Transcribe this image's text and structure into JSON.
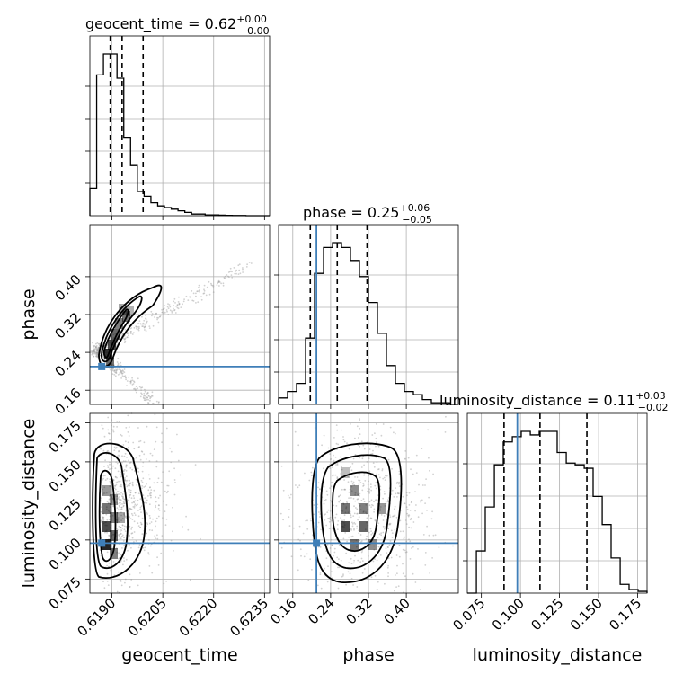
{
  "chart_data": {
    "type": "corner",
    "parameters": [
      "geocent_time",
      "phase",
      "luminosity_distance"
    ],
    "truths": {
      "geocent_time": 0.6187,
      "phase": 0.21,
      "luminosity_distance": 0.098
    },
    "colors": {
      "truth": "#3f7fb8",
      "line": "#000000",
      "grid": "#b0b0b0",
      "scatter": "#9a9a9a"
    },
    "grid": true,
    "titles": {
      "geocent_time": {
        "label": "geocent_time = 0.62",
        "plus": "+0.00",
        "minus": "−0.00"
      },
      "phase": {
        "label": "phase = 0.25",
        "plus": "+0.06",
        "minus": "−0.05"
      },
      "luminosity_distance": {
        "label": "luminosity_distance = 0.11",
        "plus": "+0.03",
        "minus": "−0.02"
      }
    },
    "axes": {
      "geocent_time": {
        "range": [
          0.61835,
          0.62365
        ],
        "ticks": [
          "0.6190",
          "0.6205",
          "0.6220",
          "0.6235"
        ]
      },
      "phase": {
        "range": [
          0.13,
          0.51
        ],
        "ticks": [
          "0.16",
          "0.24",
          "0.32",
          "0.40"
        ]
      },
      "luminosity_distance": {
        "range": [
          0.066,
          0.181
        ],
        "ticks": [
          "0.075",
          "0.100",
          "0.125",
          "0.150",
          "0.175"
        ]
      }
    },
    "quantiles": {
      "geocent_time": [
        0.61895,
        0.6193,
        0.61992
      ],
      "phase": [
        0.197,
        0.254,
        0.317
      ],
      "luminosity_distance": [
        0.0895,
        0.1125,
        0.1425
      ]
    },
    "histograms": {
      "geocent_time": {
        "edges": [
          0.61835,
          0.61855,
          0.61875,
          0.61895,
          0.61915,
          0.61935,
          0.61955,
          0.61975,
          0.61995,
          0.62015,
          0.62035,
          0.62055,
          0.62075,
          0.62095,
          0.62115,
          0.62135,
          0.62155,
          0.62175,
          0.62195,
          0.62215,
          0.62235,
          0.62255,
          0.62275,
          0.62295,
          0.62315,
          0.62335,
          0.62355,
          0.62365
        ],
        "counts": [
          0.17,
          0.87,
          1.0,
          1.0,
          0.85,
          0.48,
          0.31,
          0.15,
          0.12,
          0.08,
          0.06,
          0.05,
          0.04,
          0.03,
          0.02,
          0.01,
          0.01,
          0.005,
          0.005,
          0.003,
          0.002,
          0.001,
          0.001,
          0.0,
          0.0,
          0.0,
          0.0
        ]
      },
      "phase": {
        "edges": [
          0.13,
          0.149,
          0.168,
          0.187,
          0.206,
          0.225,
          0.244,
          0.263,
          0.282,
          0.301,
          0.32,
          0.339,
          0.358,
          0.377,
          0.396,
          0.415,
          0.434,
          0.453,
          0.472,
          0.491,
          0.51
        ],
        "counts": [
          0.04,
          0.08,
          0.13,
          0.41,
          0.81,
          0.97,
          1.0,
          0.97,
          0.89,
          0.79,
          0.63,
          0.44,
          0.24,
          0.13,
          0.08,
          0.06,
          0.03,
          0.01,
          0.01,
          0.0
        ]
      },
      "luminosity_distance": {
        "edges": [
          0.066,
          0.0718,
          0.0775,
          0.0833,
          0.089,
          0.0948,
          0.1005,
          0.1063,
          0.112,
          0.1178,
          0.1235,
          0.1293,
          0.135,
          0.1408,
          0.1465,
          0.1523,
          0.158,
          0.1638,
          0.1695,
          0.1753,
          0.181
        ],
        "counts": [
          0.0,
          0.24,
          0.49,
          0.73,
          0.86,
          0.89,
          0.92,
          0.9,
          0.92,
          0.92,
          0.8,
          0.74,
          0.73,
          0.71,
          0.55,
          0.39,
          0.2,
          0.05,
          0.02,
          0.01
        ]
      }
    },
    "pairs": [
      {
        "x": "geocent_time",
        "y": "phase"
      },
      {
        "x": "geocent_time",
        "y": "luminosity_distance"
      },
      {
        "x": "phase",
        "y": "luminosity_distance"
      }
    ]
  }
}
